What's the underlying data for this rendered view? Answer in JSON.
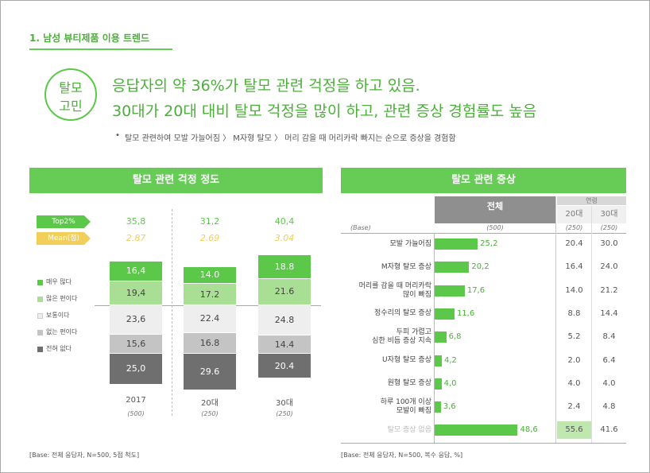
{
  "header": {
    "section": "1. 남성 뷰티제품 이용 트렌드",
    "badge": [
      "탈모",
      "고민"
    ],
    "headline": [
      "응답자의 약 36%가 탈모 관련 걱정을 하고 있음.",
      "30대가 20대 대비 탈모 걱정을 많이 하고, 관련 증상 경험률도 높음"
    ],
    "bullet": "탈모 관련하여 모발 가늘어짐 〉 M자형 탈모 〉 머리 감을 때 머리카락 빠지는 순으로 증상을 경험함"
  },
  "chart_data": [
    {
      "type": "stacked-bar",
      "title": "탈모 관련 걱정 정도",
      "categories": [
        "2017",
        "20대",
        "30대"
      ],
      "bases": [
        "(500)",
        "(250)",
        "(250)"
      ],
      "summary": [
        {
          "name": "Top2%",
          "color": "#5cc84a",
          "values": [
            35.8,
            31.2,
            40.4
          ],
          "value_labels": [
            "35,8",
            "31,2",
            "40,4"
          ]
        },
        {
          "name": "Mean(점)",
          "color": "#f2cf5b",
          "values": [
            2.87,
            2.69,
            3.04
          ]
        }
      ],
      "series": [
        {
          "name": "매우 많다",
          "color": "#5cc84a",
          "values": [
            16.4,
            14.0,
            18.8
          ],
          "value_labels": [
            "16,4",
            "14.0",
            "18.8"
          ]
        },
        {
          "name": "많은 편이다",
          "color": "#a9df94",
          "values": [
            19.4,
            17.2,
            21.6
          ],
          "value_labels": [
            "19,4",
            "17.2",
            "21.6"
          ]
        },
        {
          "name": "보통이다",
          "color": "#eeeeee",
          "values": [
            23.6,
            22.4,
            24.8
          ],
          "value_labels": [
            "23,6",
            "22.4",
            "24.8"
          ]
        },
        {
          "name": "없는 편이다",
          "color": "#c4c4c4",
          "values": [
            15.6,
            16.8,
            14.4
          ],
          "value_labels": [
            "15,6",
            "16.8",
            "14.4"
          ]
        },
        {
          "name": "전혀 없다",
          "color": "#6f6f6f",
          "values": [
            25.0,
            29.6,
            20.4
          ],
          "value_labels": [
            "25,0",
            "29.6",
            "20.4"
          ]
        }
      ],
      "footnote": "[Base: 전체 응답자, N=500, 5점 척도]"
    },
    {
      "type": "hbar-table",
      "title": "탈모 관련 증상",
      "base_label": "(Base)",
      "group_label": "연령",
      "categories": [
        "모발 가늘어짐",
        "M자형 탈모 증상",
        "머리를 감을 때 머리카락\n많이 빠짐",
        "정수리의 탈모 증상",
        "두피 가렵고\n심한 비듬 증상 지속",
        "U자형 탈모 증상",
        "원형 탈모 증상",
        "하루 100개 이상\n모발이 빠짐",
        "탈모 증상 없음"
      ],
      "series": [
        {
          "name": "전체",
          "base": "(500)",
          "color": "#5cc84a",
          "values": [
            25.2,
            20.2,
            17.6,
            11.6,
            6.8,
            4.2,
            4.0,
            3.6,
            48.6
          ],
          "value_labels": [
            "25,2",
            "20,2",
            "17,6",
            "11,6",
            "6,8",
            "4,2",
            "4,0",
            "3,6",
            "48,6"
          ]
        },
        {
          "name": "20대",
          "base": "(250)",
          "values": [
            20.4,
            16.4,
            14.0,
            8.8,
            5.2,
            2.0,
            4.0,
            2.4,
            55.6
          ],
          "value_labels": [
            "20.4",
            "16.4",
            "14.0",
            "8.8",
            "5.2",
            "2.0",
            "4.0",
            "2.4",
            "55.6"
          ]
        },
        {
          "name": "30대",
          "base": "(250)",
          "values": [
            30.0,
            24.0,
            21.2,
            14.4,
            8.4,
            6.4,
            4.0,
            4.8,
            41.6
          ],
          "value_labels": [
            "30.0",
            "24.0",
            "21.2",
            "14.4",
            "8.4",
            "6.4",
            "4.0",
            "4.8",
            "41.6"
          ]
        }
      ],
      "footnote": "[Base: 전체 응답자, N=500, 복수 응답, %]"
    }
  ]
}
